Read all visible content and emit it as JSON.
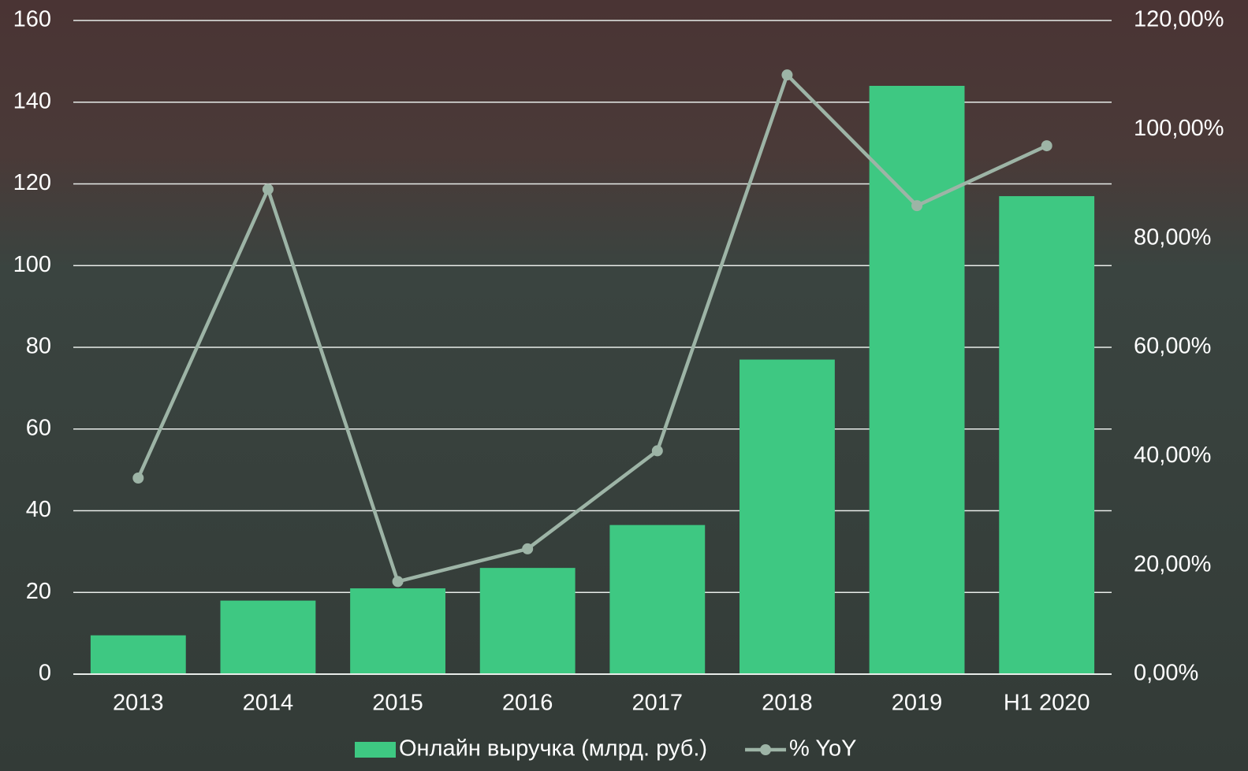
{
  "chart_data": {
    "type": "bar",
    "categories": [
      "2013",
      "2014",
      "2015",
      "2016",
      "2017",
      "2018",
      "2019",
      "H1 2020"
    ],
    "series": [
      {
        "name": "Онлайн выручка (млрд. руб.)",
        "type": "bar",
        "color": "#3ec882",
        "values": [
          9.5,
          18,
          21,
          26,
          36.5,
          77,
          144,
          117
        ]
      },
      {
        "name": "% YoY",
        "type": "line",
        "axis": "y2",
        "color": "#9db4a6",
        "values": [
          36,
          89,
          17,
          23,
          41,
          110,
          86,
          97
        ]
      }
    ],
    "ylim": [
      0,
      160
    ],
    "yticks": [
      0,
      20,
      40,
      60,
      80,
      100,
      120,
      140,
      160
    ],
    "y2lim": [
      0,
      120
    ],
    "y2ticks": [
      {
        "value": 0,
        "label": "0,00%"
      },
      {
        "value": 20,
        "label": "20,00%"
      },
      {
        "value": 40,
        "label": "40,00%"
      },
      {
        "value": 60,
        "label": "60,00%"
      },
      {
        "value": 80,
        "label": "80,00%"
      },
      {
        "value": 100,
        "label": "100,00%"
      },
      {
        "value": 120,
        "label": "120,00%"
      }
    ],
    "grid": true,
    "legend": "bottom"
  }
}
